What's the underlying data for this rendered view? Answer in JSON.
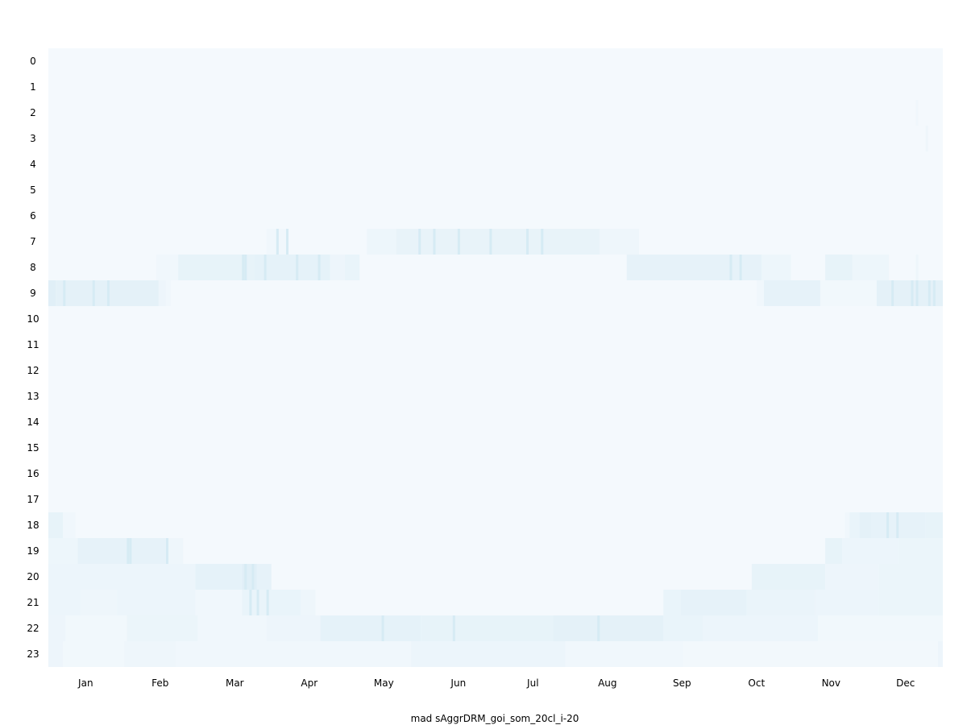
{
  "chart_data": {
    "type": "heatmap",
    "title": "",
    "xlabel": "mad sAggrDRM_goi_som_20cl_i-20",
    "ylabel": "",
    "x_tick_labels": [
      "Jan",
      "Feb",
      "Mar",
      "Apr",
      "May",
      "Jun",
      "Jul",
      "Aug",
      "Sep",
      "Oct",
      "Nov",
      "Dec"
    ],
    "y_tick_labels": [
      "0",
      "1",
      "2",
      "3",
      "4",
      "5",
      "6",
      "7",
      "8",
      "9",
      "10",
      "11",
      "12",
      "13",
      "14",
      "15",
      "16",
      "17",
      "18",
      "19",
      "20",
      "21",
      "22",
      "23"
    ],
    "x_range_days": [
      1,
      365
    ],
    "y_range_hours": [
      0,
      23
    ],
    "colormap": [
      "#f4f9fd",
      "#cfe7f2"
    ],
    "value_range": [
      0,
      1
    ],
    "grid": false,
    "legend": "none",
    "bands": [
      {
        "hour": 2,
        "segments": [
          [
            355,
            356,
            0.1
          ]
        ]
      },
      {
        "hour": 3,
        "segments": [
          [
            359,
            360,
            0.15
          ]
        ]
      },
      {
        "hour": 7,
        "segments": [
          [
            90,
            98,
            0.12
          ],
          [
            131,
            143,
            0.18
          ],
          [
            143,
            226,
            0.32
          ],
          [
            226,
            242,
            0.15
          ]
        ]
      },
      {
        "hour": 8,
        "segments": [
          [
            45,
            54,
            0.12
          ],
          [
            54,
            85,
            0.35
          ],
          [
            85,
            116,
            0.4
          ],
          [
            116,
            122,
            0.2
          ],
          [
            122,
            128,
            0.3
          ],
          [
            237,
            292,
            0.38
          ],
          [
            292,
            304,
            0.18
          ],
          [
            318,
            329,
            0.35
          ],
          [
            329,
            344,
            0.18
          ],
          [
            355,
            356,
            0.15
          ]
        ]
      },
      {
        "hour": 9,
        "segments": [
          [
            1,
            4,
            0.55
          ],
          [
            4,
            46,
            0.42
          ],
          [
            46,
            49,
            0.2
          ],
          [
            49,
            51,
            0.1
          ],
          [
            290,
            293,
            0.12
          ],
          [
            293,
            316,
            0.38
          ],
          [
            316,
            339,
            0.08
          ],
          [
            339,
            381,
            0.42
          ]
        ]
      },
      {
        "hour": 18,
        "segments": [
          [
            1,
            7,
            0.35
          ],
          [
            7,
            12,
            0.12
          ],
          [
            326,
            328,
            0.1
          ],
          [
            328,
            332,
            0.3
          ],
          [
            332,
            337,
            0.42
          ],
          [
            337,
            359,
            0.38
          ],
          [
            359,
            381,
            0.36
          ]
        ]
      },
      {
        "hour": 19,
        "segments": [
          [
            1,
            13,
            0.18
          ],
          [
            13,
            49,
            0.38
          ],
          [
            49,
            56,
            0.15
          ],
          [
            318,
            325,
            0.35
          ],
          [
            325,
            348,
            0.22
          ],
          [
            348,
            381,
            0.25
          ]
        ]
      },
      {
        "hour": 20,
        "segments": [
          [
            1,
            61,
            0.22
          ],
          [
            61,
            80,
            0.4
          ],
          [
            80,
            86,
            0.55
          ],
          [
            86,
            92,
            0.38
          ],
          [
            288,
            318,
            0.35
          ],
          [
            318,
            340,
            0.2
          ],
          [
            340,
            381,
            0.25
          ]
        ]
      },
      {
        "hour": 21,
        "segments": [
          [
            1,
            14,
            0.22
          ],
          [
            14,
            29,
            0.15
          ],
          [
            29,
            61,
            0.22
          ],
          [
            61,
            80,
            0.12
          ],
          [
            80,
            104,
            0.3
          ],
          [
            104,
            110,
            0.15
          ],
          [
            252,
            259,
            0.3
          ],
          [
            259,
            286,
            0.38
          ],
          [
            286,
            314,
            0.28
          ],
          [
            314,
            340,
            0.22
          ],
          [
            340,
            381,
            0.25
          ]
        ]
      },
      {
        "hour": 22,
        "segments": [
          [
            1,
            8,
            0.2
          ],
          [
            8,
            33,
            0.08
          ],
          [
            33,
            62,
            0.25
          ],
          [
            62,
            90,
            0.12
          ],
          [
            90,
            112,
            0.2
          ],
          [
            112,
            153,
            0.4
          ],
          [
            153,
            207,
            0.35
          ],
          [
            207,
            252,
            0.42
          ],
          [
            252,
            268,
            0.3
          ],
          [
            268,
            315,
            0.22
          ],
          [
            315,
            366,
            0.08
          ],
          [
            366,
            381,
            0.25
          ]
        ]
      },
      {
        "hour": 23,
        "segments": [
          [
            1,
            7,
            0.2
          ],
          [
            7,
            32,
            0.08
          ],
          [
            32,
            53,
            0.15
          ],
          [
            53,
            149,
            0.1
          ],
          [
            149,
            212,
            0.22
          ],
          [
            212,
            260,
            0.1
          ],
          [
            260,
            364,
            0.06
          ],
          [
            364,
            371,
            0.2
          ],
          [
            371,
            381,
            0.06
          ]
        ]
      }
    ],
    "streaks": [
      {
        "hour": 7,
        "days": [
          94,
          98,
          152,
          158,
          168,
          181,
          196,
          202
        ]
      },
      {
        "hour": 8,
        "days": [
          80,
          81,
          89,
          102,
          111,
          279,
          283
        ]
      },
      {
        "hour": 9,
        "days": [
          7,
          19,
          25,
          345,
          353,
          355,
          360,
          362,
          367,
          369
        ]
      },
      {
        "hour": 18,
        "days": [
          343,
          347
        ]
      },
      {
        "hour": 19,
        "days": [
          33,
          34,
          49
        ]
      },
      {
        "hour": 20,
        "days": [
          81,
          84
        ]
      },
      {
        "hour": 21,
        "days": [
          83,
          86,
          90
        ]
      },
      {
        "hour": 22,
        "days": [
          137,
          166,
          225
        ]
      }
    ]
  }
}
